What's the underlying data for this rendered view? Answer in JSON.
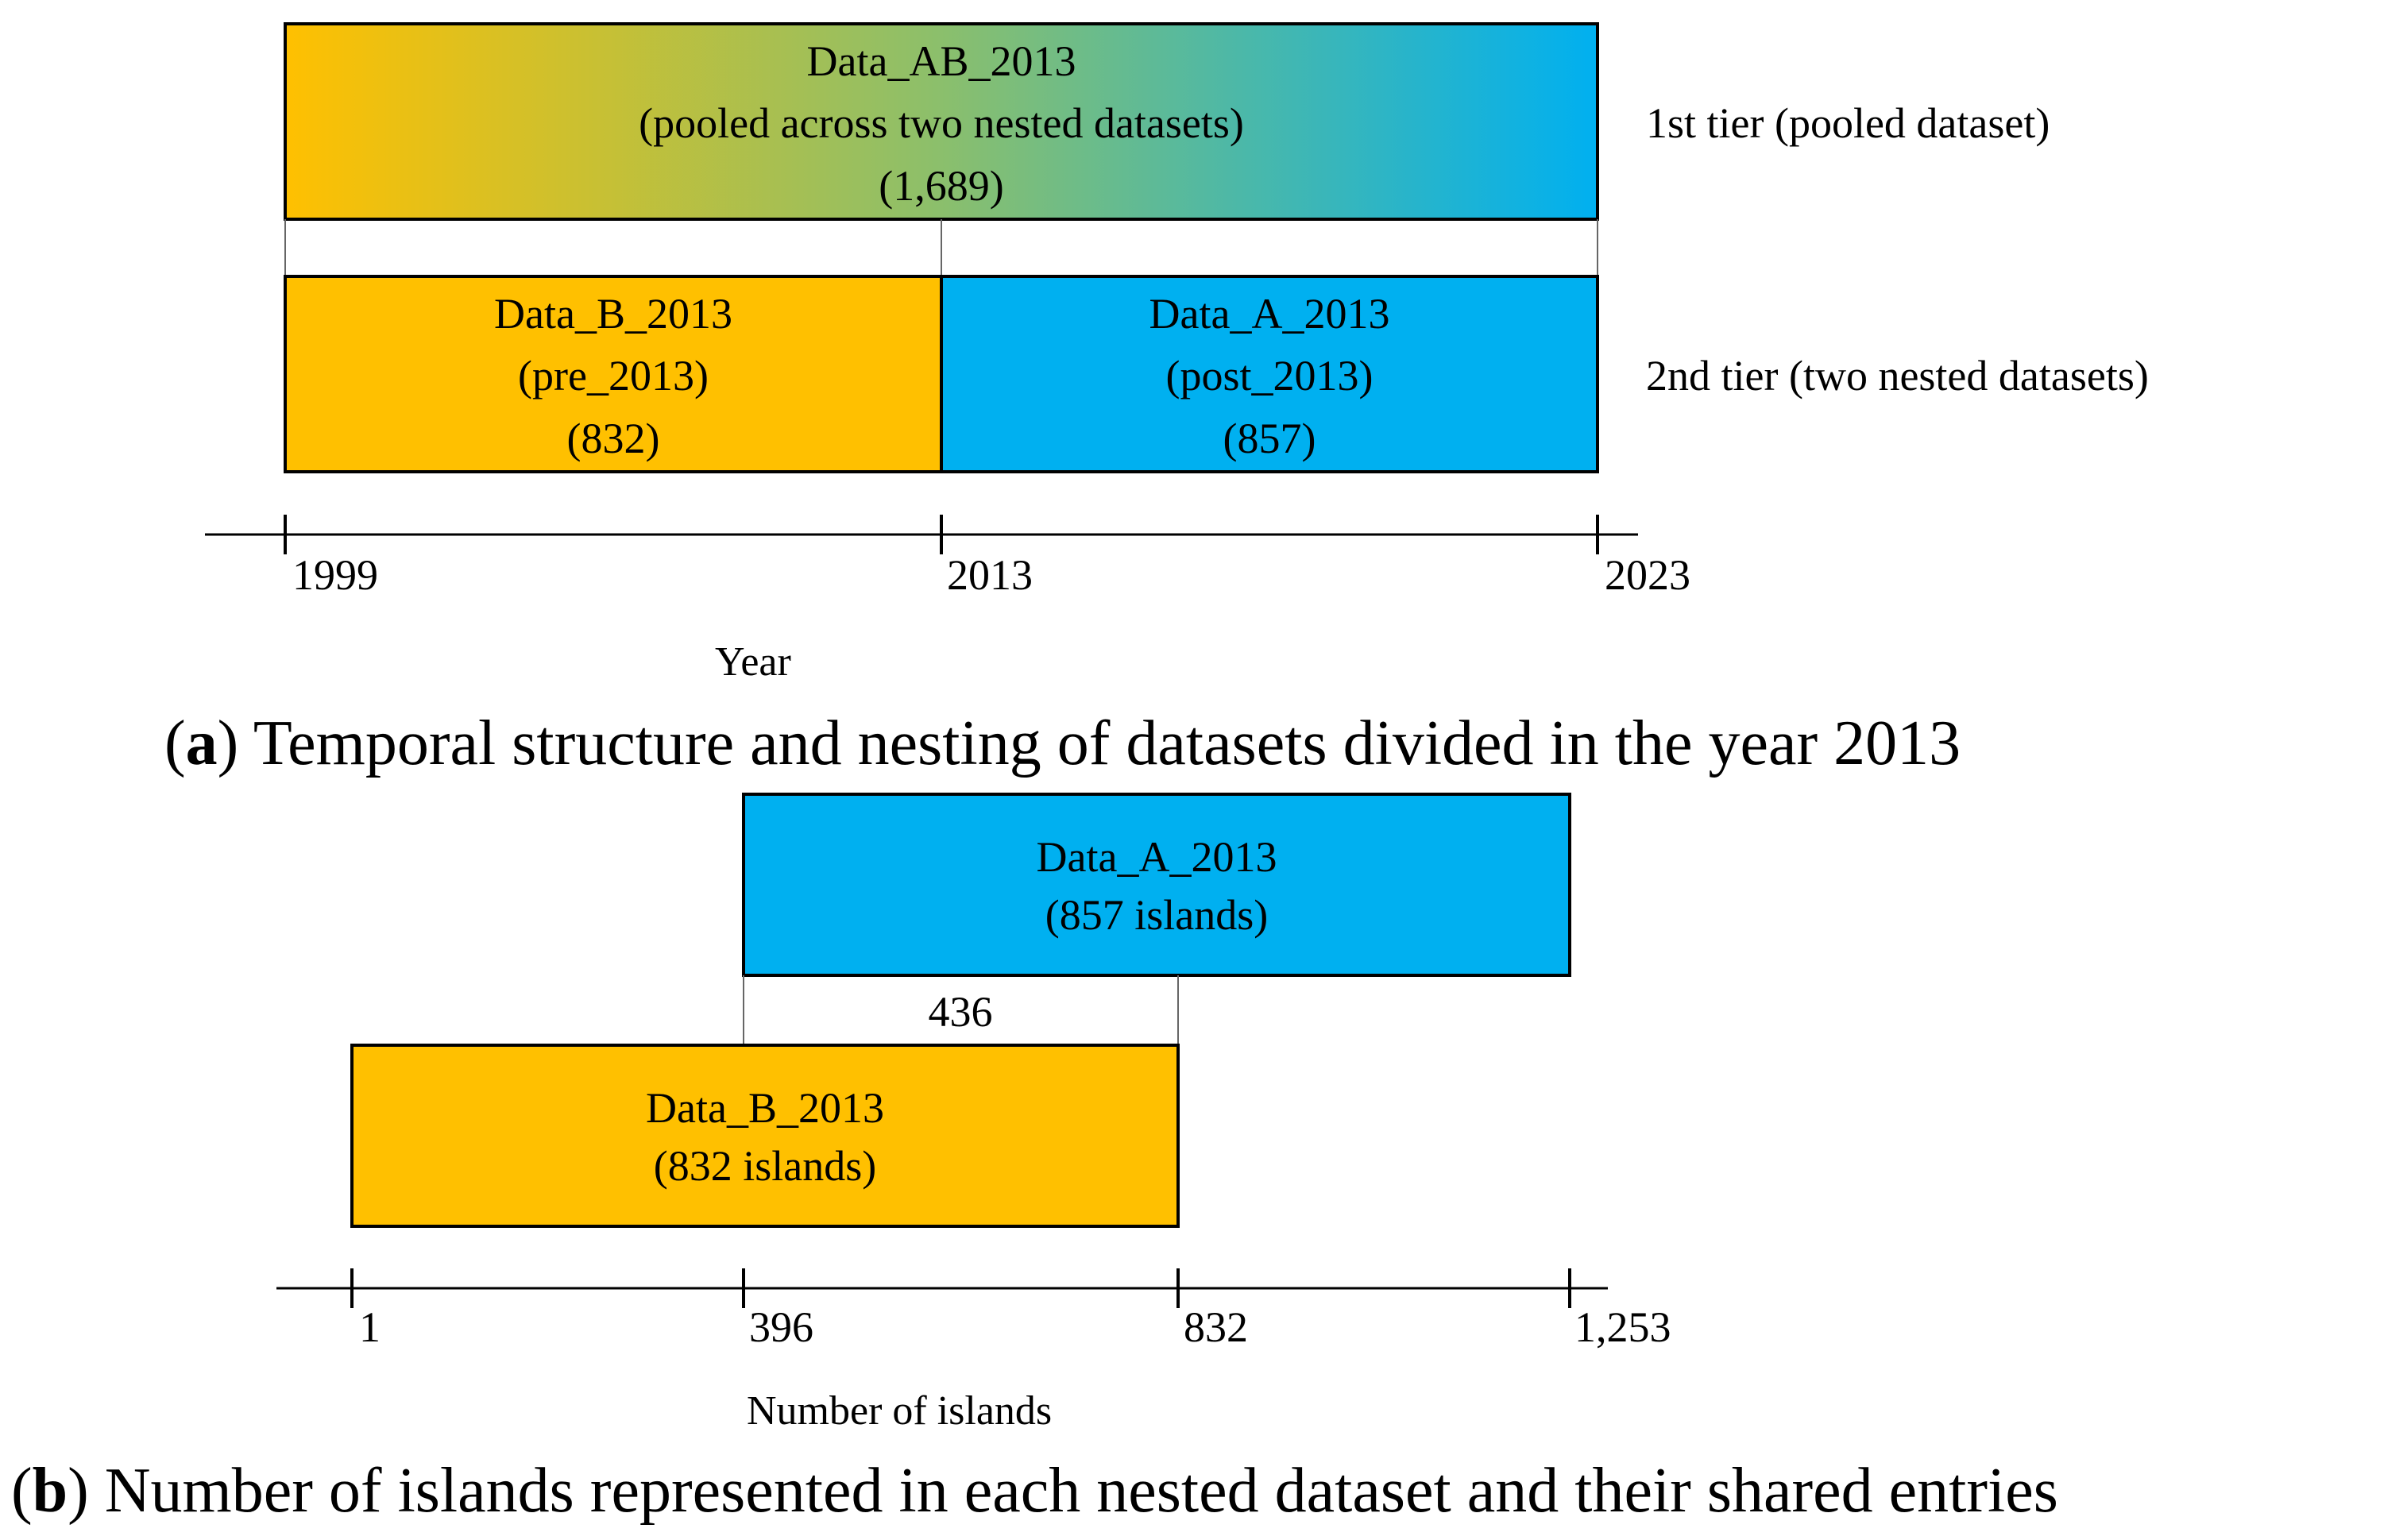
{
  "panel_a": {
    "pooled_box": {
      "line1": "Data_AB_2013",
      "line2": "(pooled across two nested datasets)",
      "line3": "(1,689)"
    },
    "box_b": {
      "line1": "Data_B_2013",
      "line2": "(pre_2013)",
      "line3": "(832)"
    },
    "box_a": {
      "line1": "Data_A_2013",
      "line2": "(post_2013)",
      "line3": "(857)"
    },
    "tier1_label": "1st tier (pooled dataset)",
    "tier2_label": "2nd tier (two nested datasets)",
    "axis": {
      "ticks": [
        "1999",
        "2013",
        "2023"
      ],
      "title": "Year"
    },
    "caption_letter": "a",
    "caption_open": "(",
    "caption_close": ")",
    "caption_text": " Temporal structure and nesting of datasets divided in the year 2013"
  },
  "panel_b": {
    "box_a": {
      "line1": "Data_A_2013",
      "line2": "(857 islands)"
    },
    "box_b": {
      "line1": "Data_B_2013",
      "line2": "(832 islands)"
    },
    "overlap_label": "436",
    "axis": {
      "ticks": [
        "1",
        "396",
        "832",
        "1,253"
      ],
      "title": "Number of islands"
    },
    "caption_letter": "b",
    "caption_open": "(",
    "caption_close": ")",
    "caption_text": " Number of islands represented in each nested dataset and their shared entries"
  },
  "colors": {
    "orange": "#FFC000",
    "blue": "#00B0F0",
    "outline": "#000000"
  }
}
